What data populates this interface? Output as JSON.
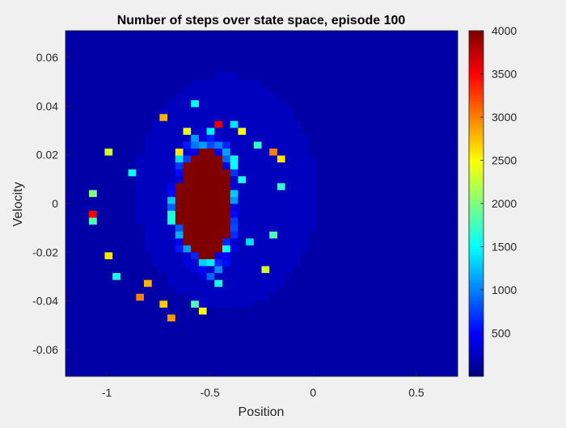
{
  "chart_data": {
    "type": "heatmap",
    "title": "Number of steps over state space, episode 100",
    "xlabel": "Position",
    "ylabel": "Velocity",
    "xlim": [
      -1.2,
      0.7
    ],
    "ylim": [
      -0.071,
      0.071
    ],
    "x_ticks": [
      -1,
      -0.5,
      0,
      0.5
    ],
    "x_tick_labels": [
      "-1",
      "-0.5",
      "0",
      "0.5"
    ],
    "y_ticks": [
      0.06,
      0.04,
      0.02,
      0,
      -0.02,
      -0.04,
      -0.06
    ],
    "y_tick_labels": [
      "0.06",
      "0.04",
      "0.02",
      "0",
      "-0.02",
      "-0.04",
      "-0.06"
    ],
    "colorbar": {
      "colormap": "jet",
      "clim": [
        0,
        4000
      ],
      "ticks": [
        500,
        1000,
        1500,
        2000,
        2500,
        3000,
        3500,
        4000
      ],
      "tick_labels": [
        "500",
        "1000",
        "1500",
        "2000",
        "2500",
        "3000",
        "3500",
        "4000"
      ]
    },
    "grid": {
      "nx": 50,
      "ny": 50
    },
    "regions": {
      "background_value": 150,
      "explored_band_value": 250,
      "saturated_core": {
        "center": [
          -0.52,
          0.0
        ],
        "radius_x": 0.137,
        "radius_y": 0.022,
        "value": 4000
      },
      "ring": {
        "center": [
          -0.52,
          0.0
        ],
        "radius_x": 0.175,
        "radius_y": 0.031
      }
    },
    "hot_cells": [
      {
        "x": -0.99,
        "y": 0.02,
        "v": 2300
      },
      {
        "x": -0.72,
        "y": 0.036,
        "v": 2800
      },
      {
        "x": -0.66,
        "y": 0.022,
        "v": 2600
      },
      {
        "x": -0.6,
        "y": 0.03,
        "v": 2400
      },
      {
        "x": -0.58,
        "y": 0.04,
        "v": 1500
      },
      {
        "x": -0.47,
        "y": 0.034,
        "v": 3600
      },
      {
        "x": -0.37,
        "y": 0.034,
        "v": 1400
      },
      {
        "x": -0.34,
        "y": 0.031,
        "v": 2500
      },
      {
        "x": -0.27,
        "y": 0.024,
        "v": 1700
      },
      {
        "x": -0.2,
        "y": 0.02,
        "v": 3000
      },
      {
        "x": -0.17,
        "y": 0.018,
        "v": 2600
      },
      {
        "x": -0.15,
        "y": 0.006,
        "v": 1700
      },
      {
        "x": -1.08,
        "y": 0.003,
        "v": 2000
      },
      {
        "x": -1.07,
        "y": -0.004,
        "v": 3500
      },
      {
        "x": -1.05,
        "y": -0.006,
        "v": 1800
      },
      {
        "x": -0.99,
        "y": -0.022,
        "v": 2600
      },
      {
        "x": -0.95,
        "y": -0.03,
        "v": 1600
      },
      {
        "x": -0.85,
        "y": -0.038,
        "v": 3000
      },
      {
        "x": -0.8,
        "y": -0.033,
        "v": 2800
      },
      {
        "x": -0.74,
        "y": -0.041,
        "v": 2700
      },
      {
        "x": -0.69,
        "y": -0.046,
        "v": 2900
      },
      {
        "x": -0.58,
        "y": -0.04,
        "v": 1800
      },
      {
        "x": -0.52,
        "y": -0.045,
        "v": 2500
      },
      {
        "x": -0.46,
        "y": -0.032,
        "v": 1600
      },
      {
        "x": -0.25,
        "y": -0.028,
        "v": 2300
      },
      {
        "x": -0.2,
        "y": -0.012,
        "v": 1800
      },
      {
        "x": -0.33,
        "y": 0.01,
        "v": 1600
      },
      {
        "x": -0.89,
        "y": 0.012,
        "v": 1500
      },
      {
        "x": -0.31,
        "y": -0.016,
        "v": 1400
      }
    ]
  }
}
